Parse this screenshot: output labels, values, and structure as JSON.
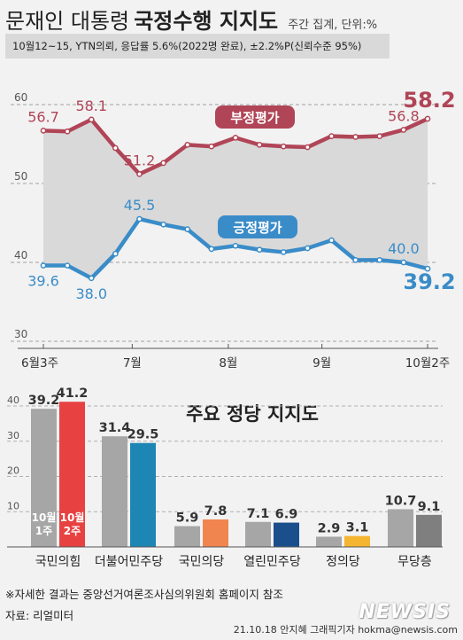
{
  "header": {
    "title_light": "문재인 대통령",
    "title_bold": "국정수행 지지도",
    "unit": "주간 집계, 단위:%",
    "survey_info": "10월12~15, YTN의뢰, 응답률 5.6%(2022명 완료), ±2.2%P(신뢰수준 95%)"
  },
  "chart_data": [
    {
      "type": "line",
      "title": "",
      "y_ticks": [
        "60",
        "50",
        "40",
        "30"
      ],
      "ylim": [
        30,
        60
      ],
      "x_ticks": [
        "6월3주",
        "7월",
        "8월",
        "9월",
        "10월2주"
      ],
      "series": [
        {
          "name": "부정평가",
          "color": "#b04557",
          "values": [
            56.7,
            56.6,
            58.1,
            54.5,
            51.2,
            52.6,
            54.9,
            54.7,
            55.8,
            54.9,
            54.7,
            54.6,
            56.0,
            55.9,
            56.0,
            56.8,
            58.2
          ],
          "labels": {
            "0": "56.7",
            "2": "58.1",
            "4": "51.2",
            "15": "56.8",
            "16": "58.2"
          }
        },
        {
          "name": "긍정평가",
          "color": "#3a8cc8",
          "values": [
            39.6,
            39.6,
            38.0,
            41.1,
            45.5,
            44.8,
            44.2,
            41.7,
            42.1,
            41.6,
            41.3,
            41.8,
            42.8,
            40.3,
            40.3,
            40.0,
            39.2
          ],
          "labels": {
            "0": "39.6",
            "2": "38.0",
            "4": "45.5",
            "15": "40.0",
            "16": "39.2"
          }
        }
      ]
    },
    {
      "type": "bar",
      "title": "주요 정당 지지도",
      "y_ticks": [
        "40",
        "30",
        "20",
        "10"
      ],
      "ylim": [
        0,
        40
      ],
      "categories": [
        "국민의힘",
        "더불어민주당",
        "국민의당",
        "열린민주당",
        "정의당",
        "무당층"
      ],
      "series": [
        {
          "name": "10월 1주",
          "values": [
            39.2,
            31.4,
            5.9,
            7.1,
            2.9,
            10.7
          ]
        },
        {
          "name": "10월 2주",
          "values": [
            41.2,
            29.5,
            7.8,
            6.9,
            3.1,
            9.1
          ]
        }
      ],
      "value_labels": [
        [
          "39.2",
          "41.2"
        ],
        [
          "31.4",
          "29.5"
        ],
        [
          "5.9",
          "7.8"
        ],
        [
          "7.1",
          "6.9"
        ],
        [
          "2.9",
          "3.1"
        ],
        [
          "10.7",
          "9.1"
        ]
      ],
      "legend_week1": "10월 1주",
      "legend_week2": "10월 2주",
      "colors_prev": "#a6a6a6",
      "colors_now": [
        "#e84141",
        "#1e86b4",
        "#f0854f",
        "#1b4f8c",
        "#f5b530",
        "#7f7f7f"
      ]
    }
  ],
  "footer": {
    "note": "※자세한 결과는 중앙선거여론조사심의위원회 홈페이지 참조",
    "source": "자료: 리얼미터",
    "credit": "21.10.18 안지혜 그래픽기자 hokma@newsis.com",
    "logo": "NEWSIS"
  }
}
